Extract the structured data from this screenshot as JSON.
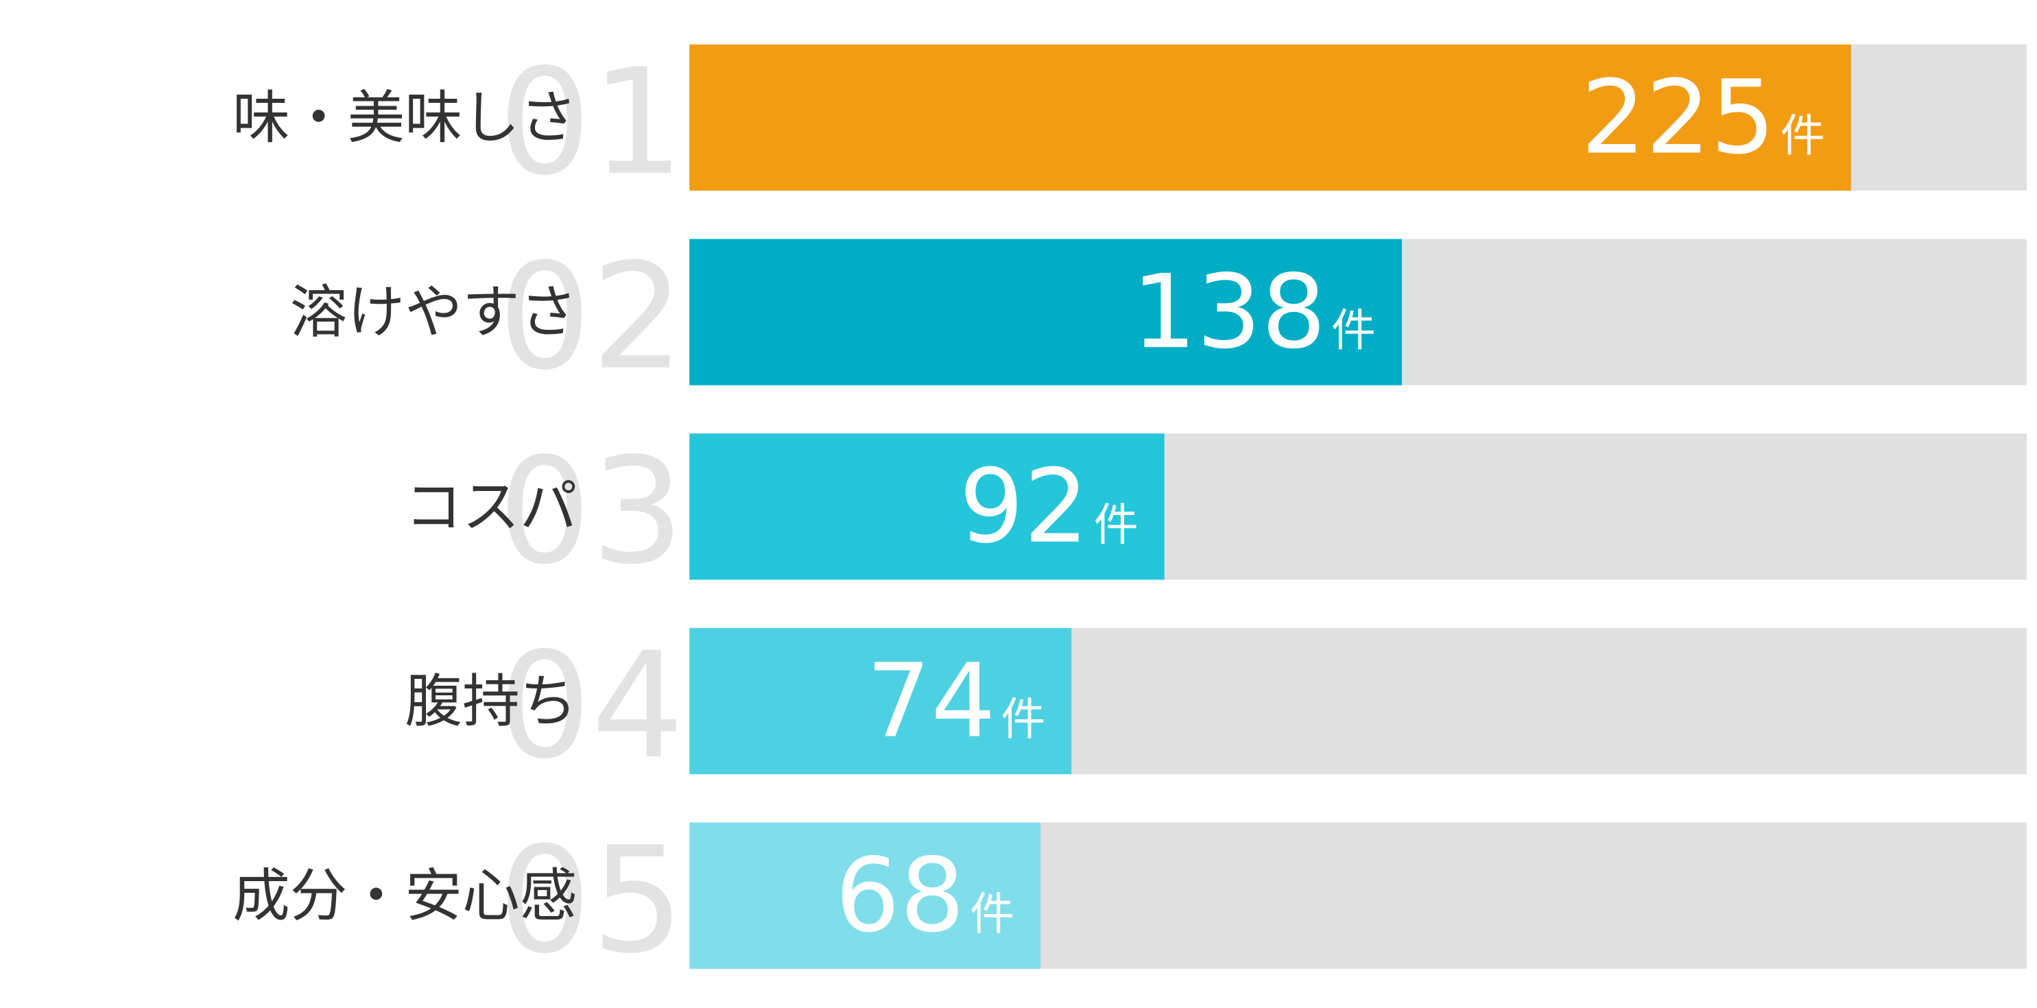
{
  "chart_data": {
    "type": "bar",
    "orientation": "horizontal",
    "categories": [
      "味・美味しさ",
      "溶けやすさ",
      "コスパ",
      "腹持ち",
      "成分・安心感"
    ],
    "ranks": [
      "01",
      "02",
      "03",
      "04",
      "05"
    ],
    "values": [
      225,
      138,
      92,
      74,
      68
    ],
    "unit": "件",
    "colors": [
      "#f29c14",
      "#00adc4",
      "#26c6da",
      "#4dd0e1",
      "#80deea"
    ],
    "track_color": "#e0e0e0",
    "xlim": [
      0,
      259
    ]
  }
}
